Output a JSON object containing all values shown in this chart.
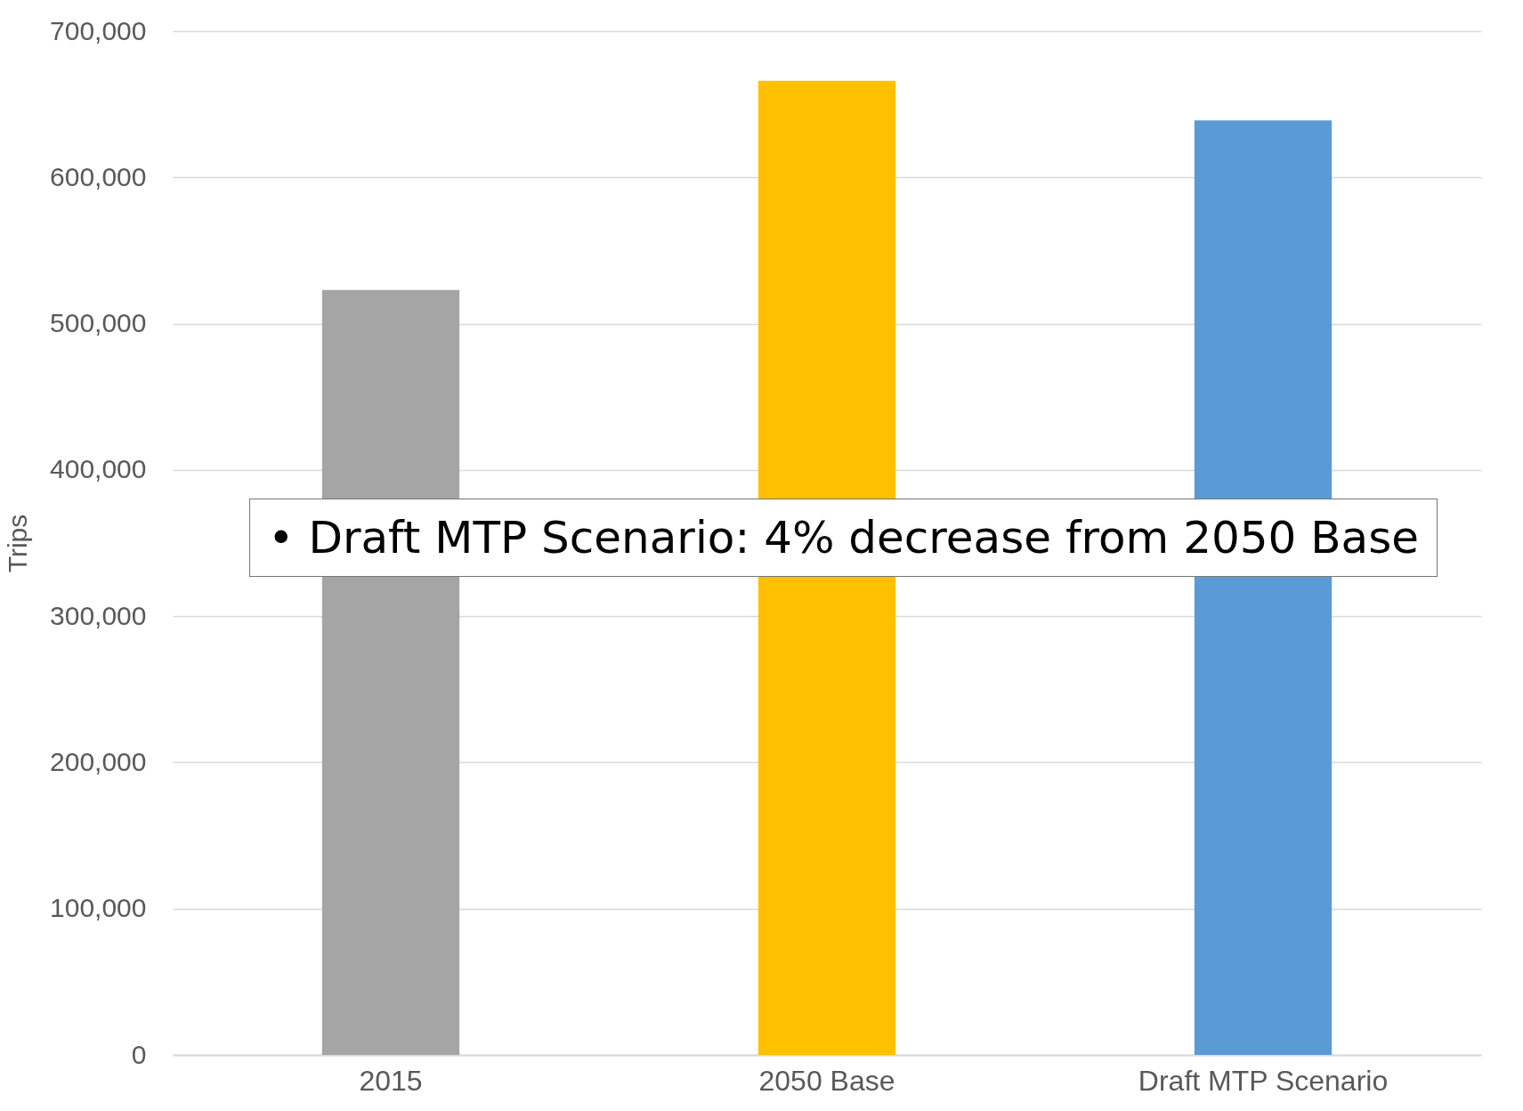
{
  "chart_data": {
    "type": "bar",
    "ylabel": "Trips",
    "categories": [
      "2015",
      "2050 Base",
      "Draft MTP Scenario"
    ],
    "values": [
      523000,
      666000,
      639000
    ],
    "colors": [
      "#a5a5a5",
      "#ffc000",
      "#5b9bd5"
    ],
    "ylim": [
      0,
      700000
    ],
    "yticks": [
      {
        "value": 0,
        "label": "0"
      },
      {
        "value": 100000,
        "label": "100,000"
      },
      {
        "value": 200000,
        "label": "200,000"
      },
      {
        "value": 300000,
        "label": "300,000"
      },
      {
        "value": 400000,
        "label": "400,000"
      },
      {
        "value": 500000,
        "label": "500,000"
      },
      {
        "value": 600000,
        "label": "600,000"
      },
      {
        "value": 700000,
        "label": "700,000"
      }
    ],
    "grid": "y",
    "annotations": [
      "• Draft MTP Scenario: 4% decrease from 2050 Base"
    ]
  }
}
